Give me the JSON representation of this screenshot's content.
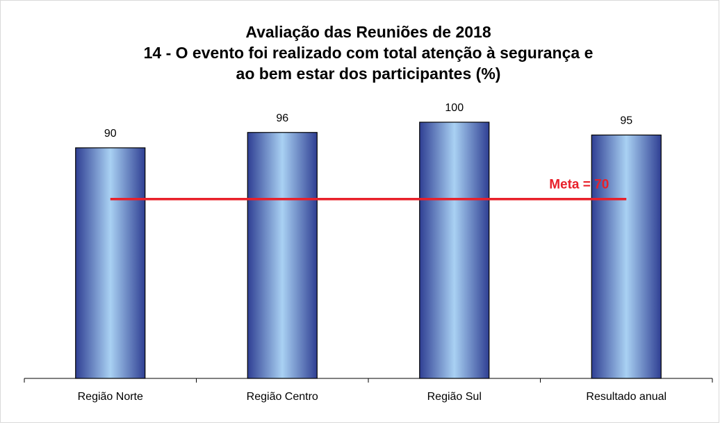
{
  "chart_data": {
    "type": "bar",
    "title_lines": [
      "Avaliação das Reuniões de 2018",
      "14 - O evento foi realizado com total atenção à segurança e",
      "ao bem estar dos participantes (%)"
    ],
    "categories": [
      "Região Norte",
      "Região Centro",
      "Região Sul",
      "Resultado anual"
    ],
    "values": [
      90,
      96,
      100,
      95
    ],
    "color": "#2f3f93",
    "highlight_color": "#a9d1f3",
    "ylim": [
      0,
      100
    ],
    "target": {
      "value": 70,
      "label": "Meta = 70",
      "color": "#e8202a"
    }
  }
}
